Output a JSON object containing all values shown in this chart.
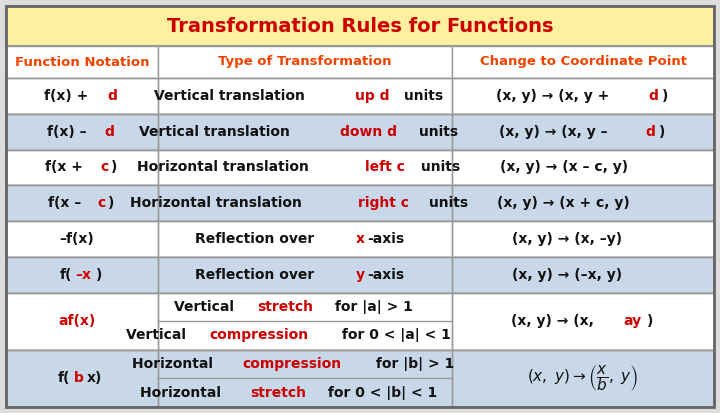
{
  "title": "Transformation Rules for Functions",
  "title_bg": "#FFF0A0",
  "title_color": "#CC0000",
  "header_color": "#EE4400",
  "col_headers": [
    "Function Notation",
    "Type of Transformation",
    "Change to Coordinate Point"
  ],
  "row_bg_white": "#FFFFFF",
  "row_bg_blue": "#C8D8E8",
  "border_color": "#999999",
  "figsize": [
    7.2,
    4.13
  ],
  "dpi": 100,
  "rows": [
    {
      "bg": "white",
      "col1_parts": [
        [
          "f(x) + ",
          "#111111",
          "bold"
        ],
        [
          "d",
          "#CC0000",
          "bold"
        ]
      ],
      "col2_parts": [
        [
          "Vertical translation ",
          "#111111",
          "bold"
        ],
        [
          "up d",
          "#CC0000",
          "bold"
        ],
        [
          " units",
          "#111111",
          "bold"
        ]
      ],
      "col3_parts": [
        [
          "(x, y) → (x, y + ",
          "#111111",
          "bold"
        ],
        [
          "d",
          "#CC0000",
          "bold"
        ],
        [
          ")",
          "#111111",
          "bold"
        ]
      ],
      "split": false
    },
    {
      "bg": "blue",
      "col1_parts": [
        [
          "f(x) – ",
          "#111111",
          "bold"
        ],
        [
          "d",
          "#CC0000",
          "bold"
        ]
      ],
      "col2_parts": [
        [
          "Vertical translation ",
          "#111111",
          "bold"
        ],
        [
          "down d",
          "#CC0000",
          "bold"
        ],
        [
          " units",
          "#111111",
          "bold"
        ]
      ],
      "col3_parts": [
        [
          "(x, y) → (x, y – ",
          "#111111",
          "bold"
        ],
        [
          "d",
          "#CC0000",
          "bold"
        ],
        [
          ")",
          "#111111",
          "bold"
        ]
      ],
      "split": false
    },
    {
      "bg": "white",
      "col1_parts": [
        [
          "f(x + ",
          "#111111",
          "bold"
        ],
        [
          "c",
          "#CC0000",
          "bold"
        ],
        [
          ")",
          "#111111",
          "bold"
        ]
      ],
      "col2_parts": [
        [
          "Horizontal translation ",
          "#111111",
          "bold"
        ],
        [
          "left c",
          "#CC0000",
          "bold"
        ],
        [
          " units",
          "#111111",
          "bold"
        ]
      ],
      "col3_parts": [
        [
          "(x, y) → (x – c, y)",
          "#111111",
          "bold"
        ]
      ],
      "split": false
    },
    {
      "bg": "blue",
      "col1_parts": [
        [
          "f(x – ",
          "#111111",
          "bold"
        ],
        [
          "c",
          "#CC0000",
          "bold"
        ],
        [
          ")",
          "#111111",
          "bold"
        ]
      ],
      "col2_parts": [
        [
          "Horizontal translation ",
          "#111111",
          "bold"
        ],
        [
          "right c",
          "#CC0000",
          "bold"
        ],
        [
          " units",
          "#111111",
          "bold"
        ]
      ],
      "col3_parts": [
        [
          "(x, y) → (x + c, y)",
          "#111111",
          "bold"
        ]
      ],
      "split": false
    },
    {
      "bg": "white",
      "col1_parts": [
        [
          "–f(x)",
          "#111111",
          "bold"
        ]
      ],
      "col2_parts": [
        [
          "Reflection over ",
          "#111111",
          "bold"
        ],
        [
          "x",
          "#CC0000",
          "bold"
        ],
        [
          "-axis",
          "#111111",
          "bold"
        ]
      ],
      "col3_parts": [
        [
          "(x, y) → (x, –y)",
          "#111111",
          "bold"
        ]
      ],
      "split": false
    },
    {
      "bg": "blue",
      "col1_parts": [
        [
          "f(",
          "#111111",
          "bold"
        ],
        [
          "–x",
          "#CC0000",
          "bold"
        ],
        [
          ")",
          "#111111",
          "bold"
        ]
      ],
      "col2_parts": [
        [
          "Reflection over ",
          "#111111",
          "bold"
        ],
        [
          "y",
          "#CC0000",
          "bold"
        ],
        [
          "-axis",
          "#111111",
          "bold"
        ]
      ],
      "col3_parts": [
        [
          "(x, y) → (–x, y)",
          "#111111",
          "bold"
        ]
      ],
      "split": false
    },
    {
      "bg": "white",
      "col1_parts": [
        [
          "af(x)",
          "#CC0000",
          "bold"
        ]
      ],
      "col2_top_parts": [
        [
          "Vertical ",
          "#111111",
          "bold"
        ],
        [
          "stretch",
          "#CC0000",
          "bold"
        ],
        [
          " for |a| > 1",
          "#111111",
          "bold"
        ]
      ],
      "col2_bot_parts": [
        [
          "Vertical ",
          "#111111",
          "bold"
        ],
        [
          "compression",
          "#CC0000",
          "bold"
        ],
        [
          " for 0 < |a| < 1",
          "#111111",
          "bold"
        ]
      ],
      "col3_parts": [
        [
          "(x, y) → (x, ",
          "#111111",
          "bold"
        ],
        [
          "ay",
          "#CC0000",
          "bold"
        ],
        [
          ")",
          "#111111",
          "bold"
        ]
      ],
      "split": true
    },
    {
      "bg": "blue",
      "col1_parts": [
        [
          "f(",
          "#111111",
          "bold"
        ],
        [
          "b",
          "#CC0000",
          "bold"
        ],
        [
          "x)",
          "#111111",
          "bold"
        ]
      ],
      "col2_top_parts": [
        [
          "Horizontal ",
          "#111111",
          "bold"
        ],
        [
          "compression",
          "#CC0000",
          "bold"
        ],
        [
          " for |b| > 1",
          "#111111",
          "bold"
        ]
      ],
      "col2_bot_parts": [
        [
          "Horizontal ",
          "#111111",
          "bold"
        ],
        [
          "stretch",
          "#CC0000",
          "bold"
        ],
        [
          " for 0 < |b| < 1",
          "#111111",
          "bold"
        ]
      ],
      "col3_fraction": true,
      "split": true
    }
  ]
}
